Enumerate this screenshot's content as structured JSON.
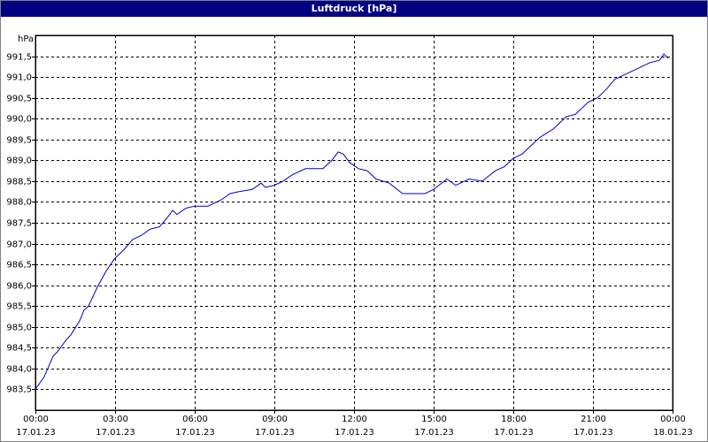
{
  "chart_data": {
    "type": "line",
    "title": "Luftdruck [hPa]",
    "y_label": "hPa",
    "xlim": [
      0,
      24
    ],
    "ylim": [
      983.0,
      992.0
    ],
    "xticks": [
      {
        "value": 0,
        "label": "00:00"
      },
      {
        "value": 3,
        "label": "03:00"
      },
      {
        "value": 6,
        "label": "06:00"
      },
      {
        "value": 9,
        "label": "09:00"
      },
      {
        "value": 12,
        "label": "12:00"
      },
      {
        "value": 15,
        "label": "15:00"
      },
      {
        "value": 18,
        "label": "18:00"
      },
      {
        "value": 21,
        "label": "21:00"
      },
      {
        "value": 24,
        "label": "00:00"
      }
    ],
    "xtick_dates": [
      "17.01.23",
      "17.01.23",
      "17.01.23",
      "17.01.23",
      "17.01.23",
      "17.01.23",
      "17.01.23",
      "17.01.23",
      "18.01.23"
    ],
    "yticks": [
      {
        "value": 983.5,
        "label": "983,5"
      },
      {
        "value": 984.0,
        "label": "984,0"
      },
      {
        "value": 984.5,
        "label": "984,5"
      },
      {
        "value": 985.0,
        "label": "985,0"
      },
      {
        "value": 985.5,
        "label": "985,5"
      },
      {
        "value": 986.0,
        "label": "986,0"
      },
      {
        "value": 986.5,
        "label": "986,5"
      },
      {
        "value": 987.0,
        "label": "987,0"
      },
      {
        "value": 987.5,
        "label": "987,5"
      },
      {
        "value": 988.0,
        "label": "988,0"
      },
      {
        "value": 988.5,
        "label": "988,5"
      },
      {
        "value": 989.0,
        "label": "989,0"
      },
      {
        "value": 989.5,
        "label": "989,5"
      },
      {
        "value": 990.0,
        "label": "990,0"
      },
      {
        "value": 990.5,
        "label": "990,5"
      },
      {
        "value": 991.0,
        "label": "991,0"
      },
      {
        "value": 991.5,
        "label": "991,5"
      }
    ],
    "grid": true,
    "series": [
      {
        "name": "Luftdruck",
        "color": "#0000cc",
        "x": [
          0,
          0.33,
          0.67,
          0.83,
          1.0,
          1.17,
          1.33,
          1.67,
          1.83,
          2.0,
          2.33,
          2.67,
          3.0,
          3.33,
          3.67,
          4.0,
          4.33,
          4.67,
          5.0,
          5.17,
          5.33,
          5.67,
          6.0,
          6.5,
          7.0,
          7.33,
          7.67,
          8.17,
          8.5,
          8.67,
          9.0,
          9.33,
          9.67,
          10.17,
          10.83,
          11.17,
          11.4,
          11.6,
          11.83,
          12.17,
          12.5,
          12.83,
          13.33,
          13.83,
          14.67,
          15.0,
          15.5,
          15.83,
          16.17,
          16.33,
          16.83,
          17.33,
          17.67,
          18.0,
          18.33,
          19.0,
          19.5,
          20.0,
          20.33,
          20.83,
          21.17,
          21.5,
          21.83,
          22.17,
          22.67,
          23.17,
          23.5,
          23.67,
          23.83
        ],
        "values": [
          983.5,
          983.8,
          984.3,
          984.4,
          984.55,
          984.7,
          984.8,
          985.15,
          985.4,
          985.5,
          985.95,
          986.35,
          986.65,
          986.85,
          987.1,
          987.2,
          987.35,
          987.4,
          987.65,
          987.8,
          987.7,
          987.85,
          987.9,
          987.9,
          988.05,
          988.2,
          988.25,
          988.3,
          988.45,
          988.35,
          988.4,
          988.5,
          988.65,
          988.8,
          988.8,
          989.0,
          989.2,
          989.15,
          988.95,
          988.8,
          988.75,
          988.55,
          988.45,
          988.2,
          988.2,
          988.3,
          988.55,
          988.4,
          988.5,
          988.55,
          988.5,
          988.75,
          988.85,
          989.05,
          989.15,
          989.55,
          989.75,
          990.05,
          990.1,
          990.4,
          990.5,
          990.7,
          990.95,
          991.05,
          991.2,
          991.35,
          991.4,
          991.55,
          991.45
        ]
      }
    ]
  }
}
